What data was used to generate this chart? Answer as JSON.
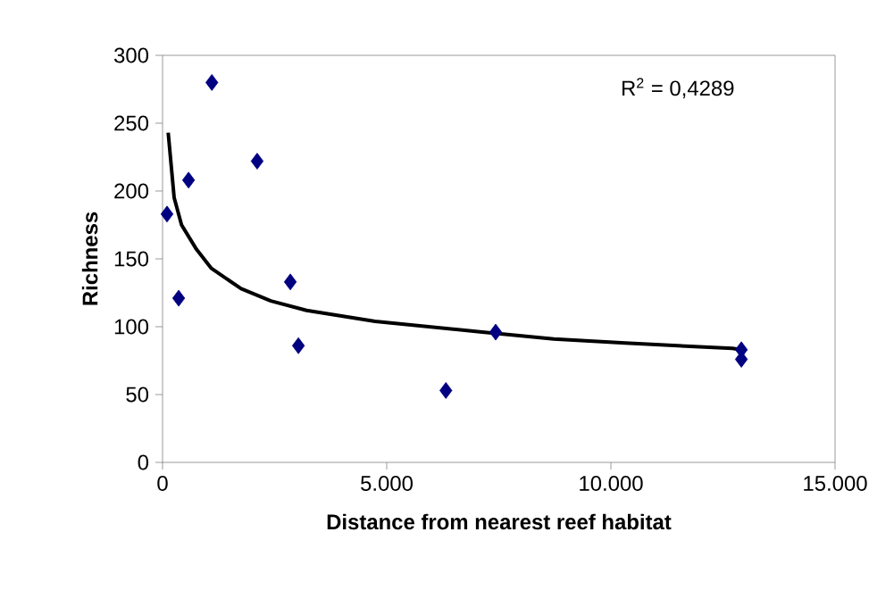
{
  "chart_data": {
    "type": "scatter",
    "xlabel": "Distance from nearest reef habitat",
    "ylabel": "Richness",
    "xlim": [
      0,
      15000
    ],
    "ylim": [
      0,
      300
    ],
    "xticks": [
      0,
      {
        "value": 5000,
        "label": "5.000"
      },
      {
        "value": 10000,
        "label": "10.000"
      },
      {
        "value": 15000,
        "label": "15.000"
      }
    ],
    "yticks": [
      0,
      50,
      100,
      150,
      200,
      250,
      300
    ],
    "grid": false,
    "annotations": [
      "R$^{2}$ = 0,4289"
    ],
    "series": [
      {
        "marker": "diamond",
        "color": "#000080",
        "x": [
          100,
          360,
          580,
          1100,
          2110,
          2850,
          3030,
          6320,
          7430,
          12910,
          12910
        ],
        "values": [
          183,
          121,
          208,
          280,
          222,
          133,
          86,
          53,
          96,
          83,
          76
        ]
      },
      {
        "type": "line",
        "color": "#000000",
        "x": [
          126,
          259,
          424,
          757,
          1090,
          1753,
          2416,
          3213,
          4741,
          7131,
          8725,
          10319,
          12709,
          12900
        ],
        "values": [
          243,
          195,
          175,
          157,
          143,
          128,
          119,
          112,
          104,
          96,
          91,
          88,
          84,
          83
        ]
      }
    ]
  }
}
